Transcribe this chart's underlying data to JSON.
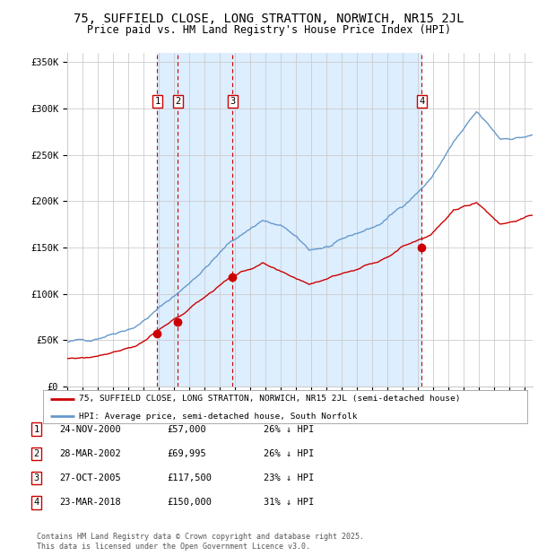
{
  "title": "75, SUFFIELD CLOSE, LONG STRATTON, NORWICH, NR15 2JL",
  "subtitle": "Price paid vs. HM Land Registry's House Price Index (HPI)",
  "title_fontsize": 10,
  "subtitle_fontsize": 8.5,
  "background_color": "#ffffff",
  "plot_bg_color": "#ffffff",
  "grid_color": "#cccccc",
  "shade_color": "#ddeeff",
  "yticks": [
    0,
    50000,
    100000,
    150000,
    200000,
    250000,
    300000,
    350000
  ],
  "ytick_labels": [
    "£0",
    "£50K",
    "£100K",
    "£150K",
    "£200K",
    "£250K",
    "£300K",
    "£350K"
  ],
  "sale_dates": [
    "24-NOV-2000",
    "28-MAR-2002",
    "27-OCT-2005",
    "23-MAR-2018"
  ],
  "sale_prices": [
    57000,
    69995,
    117500,
    150000
  ],
  "sale_labels": [
    "1",
    "2",
    "3",
    "4"
  ],
  "sale_years": [
    2000.9,
    2002.24,
    2005.82,
    2018.23
  ],
  "sale_info": [
    {
      "num": "1",
      "date": "24-NOV-2000",
      "price": "£57,000",
      "pct": "26% ↓ HPI"
    },
    {
      "num": "2",
      "date": "28-MAR-2002",
      "price": "£69,995",
      "pct": "26% ↓ HPI"
    },
    {
      "num": "3",
      "date": "27-OCT-2005",
      "price": "£117,500",
      "pct": "23% ↓ HPI"
    },
    {
      "num": "4",
      "date": "23-MAR-2018",
      "price": "£150,000",
      "pct": "31% ↓ HPI"
    }
  ],
  "legend_line1": "75, SUFFIELD CLOSE, LONG STRATTON, NORWICH, NR15 2JL (semi-detached house)",
  "legend_line2": "HPI: Average price, semi-detached house, South Norfolk",
  "price_line_color": "#cc0000",
  "hpi_line_color": "#6699cc",
  "dashed_line_color": "#cc0000",
  "footnote": "Contains HM Land Registry data © Crown copyright and database right 2025.\nThis data is licensed under the Open Government Licence v3.0.",
  "xmin": 1995,
  "xmax": 2025.5,
  "ymin": 0,
  "ymax": 360000,
  "hpi_waypoints_t": [
    0.0,
    0.05,
    0.15,
    0.25,
    0.35,
    0.42,
    0.47,
    0.52,
    0.57,
    0.62,
    0.67,
    0.72,
    0.78,
    0.83,
    0.88,
    0.93,
    1.0
  ],
  "hpi_waypoints_v": [
    48000,
    50000,
    70000,
    110000,
    160000,
    185000,
    175000,
    150000,
    155000,
    165000,
    175000,
    195000,
    225000,
    265000,
    295000,
    265000,
    270000
  ],
  "price_waypoints_t": [
    0.0,
    0.05,
    0.15,
    0.25,
    0.35,
    0.42,
    0.47,
    0.52,
    0.57,
    0.62,
    0.67,
    0.72,
    0.78,
    0.83,
    0.88,
    0.93,
    1.0
  ],
  "price_waypoints_v": [
    30000,
    32000,
    48000,
    80000,
    120000,
    135000,
    120000,
    110000,
    120000,
    128000,
    138000,
    155000,
    170000,
    195000,
    205000,
    182000,
    192000
  ]
}
